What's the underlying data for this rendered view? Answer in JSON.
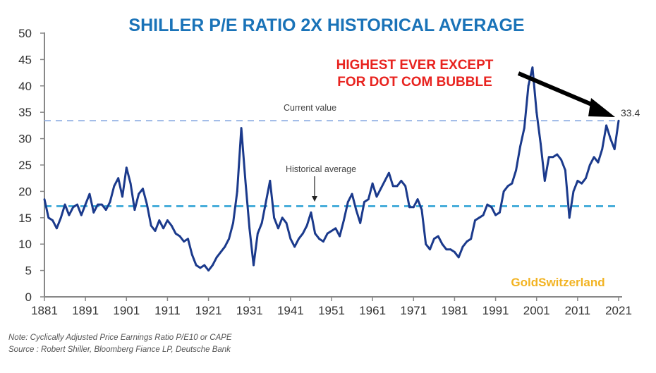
{
  "chart_data": {
    "type": "line",
    "title": "SHILLER P/E RATIO 2X HISTORICAL AVERAGE",
    "xlabel": "",
    "ylabel": "",
    "xlim": [
      1881,
      2021
    ],
    "ylim": [
      0,
      50
    ],
    "grid": false,
    "x_ticks": [
      "1881",
      "1891",
      "1901",
      "1911",
      "1921",
      "1931",
      "1941",
      "1951",
      "1961",
      "1971",
      "1981",
      "1991",
      "2001",
      "2011",
      "2021"
    ],
    "y_ticks": [
      "0",
      "5",
      "10",
      "15",
      "20",
      "25",
      "30",
      "35",
      "40",
      "45",
      "50"
    ],
    "series": [
      {
        "name": "Shiller P/E (CAPE)",
        "color": "#1b3a8c",
        "x": [
          1881,
          1882,
          1883,
          1884,
          1885,
          1886,
          1887,
          1888,
          1889,
          1890,
          1891,
          1892,
          1893,
          1894,
          1895,
          1896,
          1897,
          1898,
          1899,
          1900,
          1901,
          1902,
          1903,
          1904,
          1905,
          1906,
          1907,
          1908,
          1909,
          1910,
          1911,
          1912,
          1913,
          1914,
          1915,
          1916,
          1917,
          1918,
          1919,
          1920,
          1921,
          1922,
          1923,
          1924,
          1925,
          1926,
          1927,
          1928,
          1929,
          1930,
          1931,
          1932,
          1933,
          1934,
          1935,
          1936,
          1937,
          1938,
          1939,
          1940,
          1941,
          1942,
          1943,
          1944,
          1945,
          1946,
          1947,
          1948,
          1949,
          1950,
          1951,
          1952,
          1953,
          1954,
          1955,
          1956,
          1957,
          1958,
          1959,
          1960,
          1961,
          1962,
          1963,
          1964,
          1965,
          1966,
          1967,
          1968,
          1969,
          1970,
          1971,
          1972,
          1973,
          1974,
          1975,
          1976,
          1977,
          1978,
          1979,
          1980,
          1981,
          1982,
          1983,
          1984,
          1985,
          1986,
          1987,
          1988,
          1989,
          1990,
          1991,
          1992,
          1993,
          1994,
          1995,
          1996,
          1997,
          1998,
          1999,
          2000,
          2001,
          2002,
          2003,
          2004,
          2005,
          2006,
          2007,
          2008,
          2009,
          2010,
          2011,
          2012,
          2013,
          2014,
          2015,
          2016,
          2017,
          2018,
          2019,
          2020,
          2021
        ],
        "values": [
          18.5,
          15,
          14.5,
          13,
          15,
          17.5,
          15.5,
          17,
          17.5,
          15.5,
          17.5,
          19.5,
          16,
          17.5,
          17.5,
          16.5,
          18,
          21,
          22.5,
          19,
          24.5,
          21.5,
          16.5,
          19.5,
          20.5,
          17.5,
          13.5,
          12.5,
          14.5,
          13,
          14.5,
          13.5,
          12,
          11.5,
          10.5,
          11,
          8,
          6,
          5.5,
          6,
          5,
          6,
          7.5,
          8.5,
          9.5,
          11,
          14,
          20,
          32,
          22,
          13,
          6,
          12,
          14,
          18,
          22,
          15,
          13,
          15,
          14,
          11,
          9.5,
          11,
          12,
          13.5,
          16,
          12,
          11,
          10.5,
          12,
          12.5,
          13,
          11.5,
          14.5,
          18,
          19.5,
          16.5,
          14,
          18,
          18.5,
          21.5,
          19,
          20.5,
          22,
          23.5,
          21,
          21,
          22,
          21,
          17,
          17,
          18.5,
          16.5,
          10,
          9,
          11,
          11.5,
          10,
          9,
          9,
          8.5,
          7.5,
          9.5,
          10.5,
          11,
          14.5,
          15,
          15.5,
          17.5,
          17,
          15.5,
          16,
          20,
          21,
          21.5,
          24,
          28.5,
          32,
          40,
          43.5,
          35,
          29,
          22,
          26.5,
          26.5,
          27,
          26,
          24,
          15,
          20,
          22,
          21.5,
          22.5,
          25,
          26.5,
          25.5,
          28,
          32.5,
          30,
          28,
          33.4
        ]
      }
    ],
    "reference_lines": [
      {
        "name": "Current value",
        "value": 33.4,
        "color": "#8fb1e3",
        "style": "dashed"
      },
      {
        "name": "Historical average",
        "value": 17.2,
        "color": "#2a9fd6",
        "style": "dashed"
      }
    ],
    "annotations": [
      {
        "text": "Current value",
        "x": 1921,
        "y": 35
      },
      {
        "text": "Historical average",
        "x": 1949,
        "y": 23
      },
      {
        "text": "33.4",
        "x": 2021,
        "y": 33.4
      },
      {
        "text": "HIGHEST EVER EXCEPT FOR DOT COM BUBBLE",
        "color": "#e8231f"
      },
      {
        "text": "GoldSwitzerland",
        "color": "#f2b322"
      }
    ]
  },
  "header": {
    "title": "SHILLER P/E RATIO 2X HISTORICAL AVERAGE",
    "title_color": "#1a73b8"
  },
  "callout": {
    "line1": "HIGHEST EVER EXCEPT",
    "line2": "FOR DOT COM BUBBLE",
    "color": "#e8231f"
  },
  "labels": {
    "current_value": "Current value",
    "current_value_number": "33.4",
    "historical_average": "Historical average"
  },
  "watermark": "GoldSwitzerland",
  "footer": {
    "note": "Note: Cyclically Adjusted Price Earnings Ratio P/E10 or CAPE",
    "source": "Source : Robert Shiller, Bloomberg Fiance LP, Deutsche Bank"
  }
}
